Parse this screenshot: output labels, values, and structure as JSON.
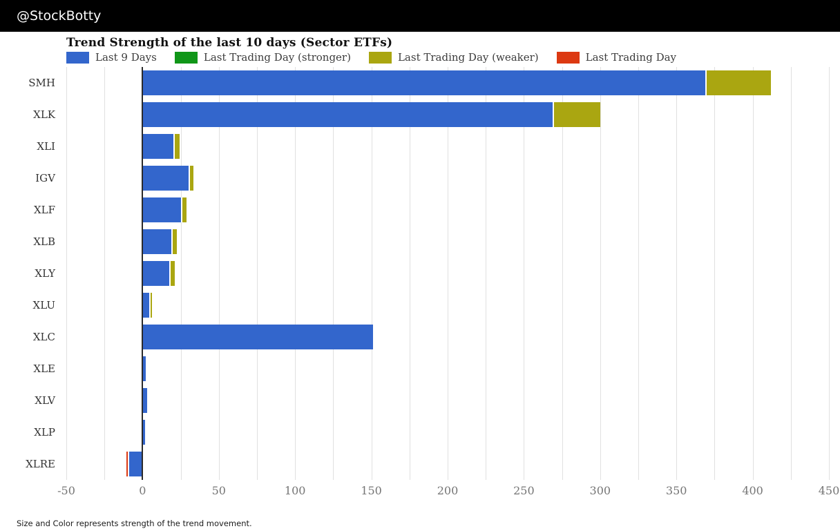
{
  "header": {
    "handle": "@StockBotty"
  },
  "footer": {
    "note": "Size and Color represents strength of the trend movement."
  },
  "chart_data": {
    "type": "bar",
    "orientation": "horizontal",
    "title": "Trend Strength of the last 10 days (Sector ETFs)",
    "xlabel": "",
    "ylabel": "",
    "xlim": [
      -50,
      450
    ],
    "grid_step": 25,
    "xticks": [
      -50,
      0,
      50,
      100,
      150,
      200,
      250,
      300,
      350,
      400,
      450
    ],
    "grid": true,
    "legend_position": "top",
    "legend": [
      {
        "key": "last9",
        "label": "Last 9 Days",
        "color": "#3366cc"
      },
      {
        "key": "stronger",
        "label": "Last Trading Day (stronger)",
        "color": "#109618"
      },
      {
        "key": "weaker",
        "label": "Last Trading Day (weaker)",
        "color": "#aaa611"
      },
      {
        "key": "last",
        "label": "Last Trading Day",
        "color": "#dc3912"
      }
    ],
    "colors": {
      "last9": "#3366cc",
      "stronger": "#109618",
      "weaker": "#aaa611",
      "last": "#dc3912"
    },
    "categories": [
      "SMH",
      "XLK",
      "XLI",
      "IGV",
      "XLF",
      "XLB",
      "XLY",
      "XLU",
      "XLC",
      "XLE",
      "XLV",
      "XLP",
      "XLRE"
    ],
    "rows": [
      {
        "ticker": "SMH",
        "last_9_days": 369,
        "last_day_segment": {
          "kind": "weaker",
          "to": 412
        }
      },
      {
        "ticker": "XLK",
        "last_9_days": 269,
        "last_day_segment": {
          "kind": "weaker",
          "to": 300
        }
      },
      {
        "ticker": "XLI",
        "last_9_days": 20,
        "last_day_segment": {
          "kind": "weaker",
          "to": 24.5
        }
      },
      {
        "ticker": "IGV",
        "last_9_days": 30,
        "last_day_segment": {
          "kind": "weaker",
          "to": 33.5
        }
      },
      {
        "ticker": "XLF",
        "last_9_days": 25,
        "last_day_segment": {
          "kind": "weaker",
          "to": 29
        }
      },
      {
        "ticker": "XLB",
        "last_9_days": 19,
        "last_day_segment": {
          "kind": "weaker",
          "to": 22.5
        }
      },
      {
        "ticker": "XLY",
        "last_9_days": 17.5,
        "last_day_segment": {
          "kind": "weaker",
          "to": 21
        }
      },
      {
        "ticker": "XLU",
        "last_9_days": 4.5,
        "last_day_segment": {
          "kind": "weaker",
          "to": 6
        }
      },
      {
        "ticker": "XLC",
        "last_9_days": 151,
        "last_day_segment": null
      },
      {
        "ticker": "XLE",
        "last_9_days": 2,
        "last_day_segment": null
      },
      {
        "ticker": "XLV",
        "last_9_days": 3,
        "last_day_segment": null
      },
      {
        "ticker": "XLP",
        "last_9_days": 1.5,
        "last_day_segment": null
      },
      {
        "ticker": "XLRE",
        "last_9_days": -9,
        "last_day_segment": {
          "kind": "last",
          "to": -10.7
        }
      }
    ]
  }
}
